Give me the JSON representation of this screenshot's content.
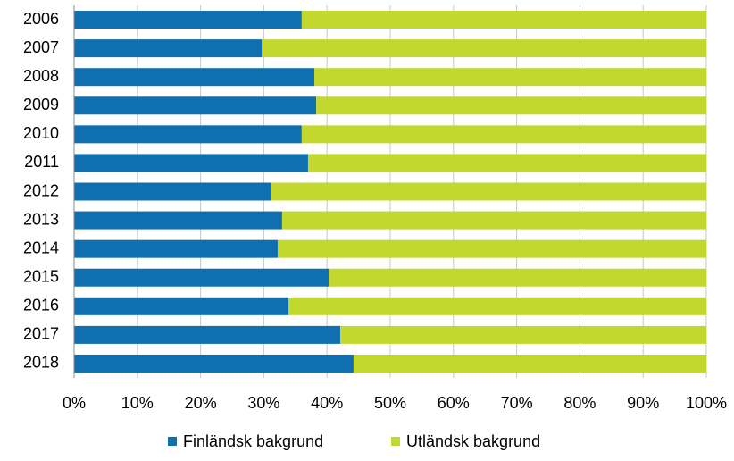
{
  "chart_data": {
    "type": "bar",
    "orientation": "horizontal",
    "stacked": true,
    "categories": [
      "2006",
      "2007",
      "2008",
      "2009",
      "2010",
      "2011",
      "2012",
      "2013",
      "2014",
      "2015",
      "2016",
      "2017",
      "2018"
    ],
    "series": [
      {
        "name": "Finländsk bakgrund",
        "color": "#0f6faf",
        "values": [
          36.0,
          29.7,
          38.0,
          38.3,
          36.0,
          37.0,
          31.2,
          32.9,
          32.2,
          40.3,
          33.9,
          42.1,
          44.2
        ]
      },
      {
        "name": "Utländsk bakgrund",
        "color": "#c3d82e",
        "values": [
          64.0,
          70.3,
          62.0,
          61.7,
          64.0,
          63.0,
          68.8,
          67.1,
          67.8,
          59.7,
          66.1,
          57.9,
          55.8
        ]
      }
    ],
    "xlim": [
      0,
      100
    ],
    "xticks": [
      {
        "value": 0,
        "label": "0%"
      },
      {
        "value": 10,
        "label": "10%"
      },
      {
        "value": 20,
        "label": "20%"
      },
      {
        "value": 30,
        "label": "30%"
      },
      {
        "value": 40,
        "label": "40%"
      },
      {
        "value": 50,
        "label": "50%"
      },
      {
        "value": 60,
        "label": "60%"
      },
      {
        "value": 70,
        "label": "70%"
      },
      {
        "value": 80,
        "label": "80%"
      },
      {
        "value": 90,
        "label": "90%"
      },
      {
        "value": 100,
        "label": "100%"
      }
    ],
    "grid": true,
    "legend": "bottom"
  }
}
